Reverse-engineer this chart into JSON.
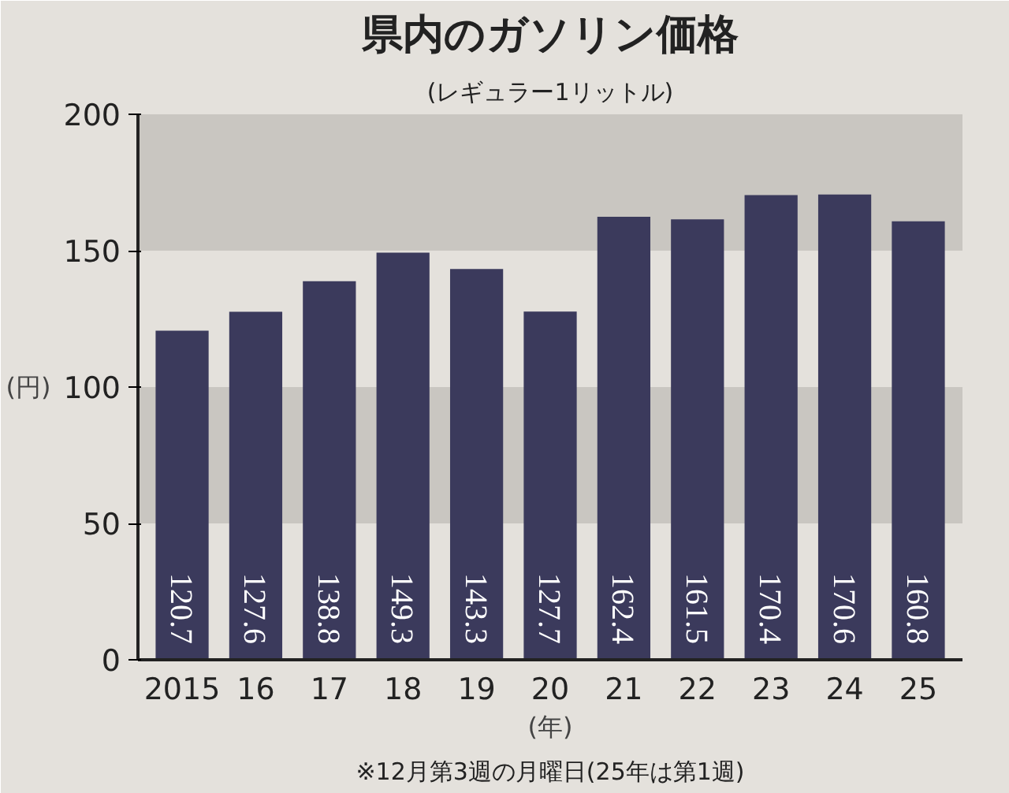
{
  "chart_data": {
    "type": "bar",
    "title": "県内のガソリン価格",
    "subtitle": "(レギュラー1リットル)",
    "xlabel": "(年)",
    "ylabel": "(円)",
    "annotations": [
      "※12月第3週の月曜日(25年は第1週)"
    ],
    "categories": [
      "2015",
      "16",
      "17",
      "18",
      "19",
      "20",
      "21",
      "22",
      "23",
      "24",
      "25"
    ],
    "values": [
      120.7,
      127.6,
      138.8,
      149.3,
      143.3,
      127.7,
      162.4,
      161.5,
      170.4,
      170.6,
      160.8
    ],
    "color": "#3b3a5c",
    "ylim": [
      0,
      200
    ],
    "yticks": [
      0,
      50,
      100,
      150,
      200
    ],
    "bands": [
      {
        "axis": "y",
        "from": 50,
        "to": 100,
        "color": "#c9c6c1"
      },
      {
        "axis": "y",
        "from": 150,
        "to": 200,
        "color": "#c9c6c1"
      }
    ],
    "data_labels": true
  }
}
